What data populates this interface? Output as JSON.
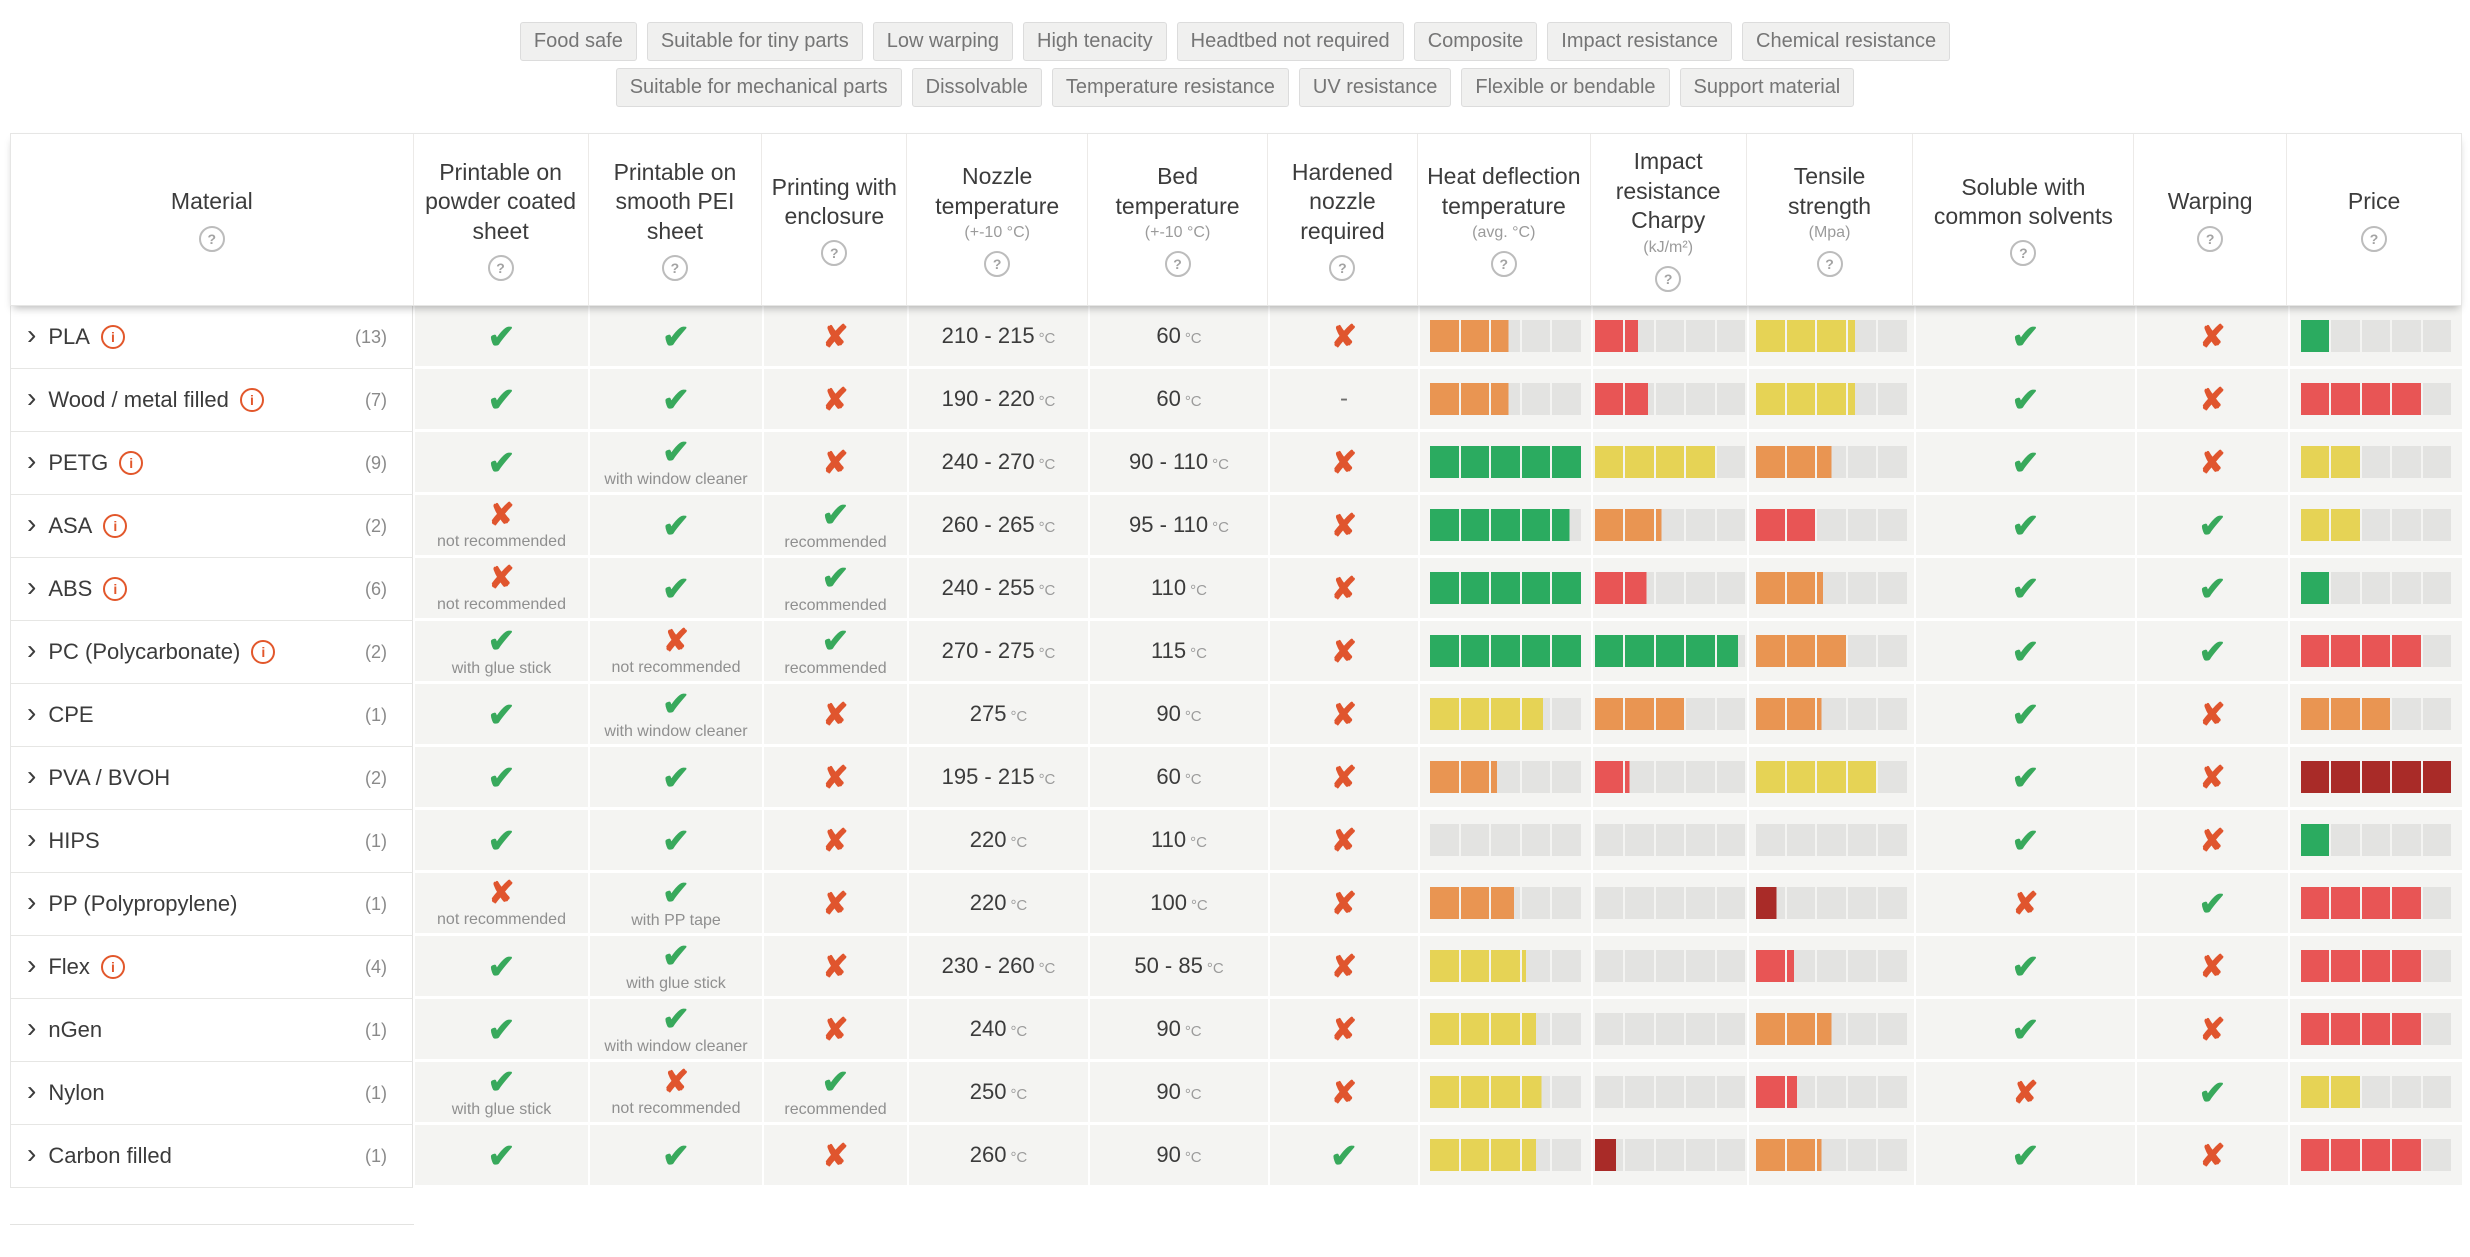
{
  "colors": {
    "check_green": "#38a95c",
    "cross_orange": "#e0552e",
    "info_orange": "#e2572b",
    "bar_green": "#2bab60",
    "bar_yellow": "#e6d355",
    "bar_orange": "#e99552",
    "bar_red": "#e85555",
    "bar_darkred": "#a92b28",
    "bar_empty": "#e3e3e1"
  },
  "icons": {
    "check": "✔",
    "cross": "✘",
    "dash": "-",
    "chevron": "›",
    "info": "i",
    "help": "?"
  },
  "filters": {
    "row1": [
      "Food safe",
      "Suitable for tiny parts",
      "Low warping",
      "High tenacity",
      "Headtbed not required",
      "Composite",
      "Impact resistance",
      "Chemical resistance"
    ],
    "row2": [
      "Suitable for mechanical parts",
      "Dissolvable",
      "Temperature resistance",
      "UV resistance",
      "Flexible or bendable",
      "Support material"
    ]
  },
  "table": {
    "columns": [
      {
        "id": "material",
        "label": "Material",
        "sub": "",
        "help": true,
        "type": "material",
        "field": "name"
      },
      {
        "id": "powder",
        "label": "Printable on powder coated sheet",
        "sub": "",
        "help": true,
        "type": "mark",
        "field": "powder"
      },
      {
        "id": "pei",
        "label": "Printable on smooth PEI sheet",
        "sub": "",
        "help": true,
        "type": "mark",
        "field": "pei"
      },
      {
        "id": "enclosure",
        "label": "Printing with enclosure",
        "sub": "",
        "help": true,
        "type": "mark",
        "field": "enclosure"
      },
      {
        "id": "nozzle",
        "label": "Nozzle temperature",
        "sub": "(+-10 °C)",
        "help": true,
        "type": "temp",
        "field": "nozzle"
      },
      {
        "id": "bed",
        "label": "Bed temperature",
        "sub": "(+-10 °C)",
        "help": true,
        "type": "temp",
        "field": "bed"
      },
      {
        "id": "hardened",
        "label": "Hardened nozzle required",
        "sub": "",
        "help": true,
        "type": "mark",
        "field": "hardened"
      },
      {
        "id": "heat",
        "label": "Heat deflection temperature",
        "sub": "(avg. °C)",
        "help": true,
        "type": "bar",
        "field": "heat"
      },
      {
        "id": "impact",
        "label": "Impact resistance Charpy",
        "sub": "(kJ/m²)",
        "help": true,
        "type": "bar",
        "field": "impact"
      },
      {
        "id": "tensile",
        "label": "Tensile strength",
        "sub": "(Mpa)",
        "help": true,
        "type": "bar",
        "field": "tensile"
      },
      {
        "id": "soluble",
        "label": "Soluble with common solvents",
        "sub": "",
        "help": true,
        "type": "mark",
        "field": "soluble"
      },
      {
        "id": "warping",
        "label": "Warping",
        "sub": "",
        "help": true,
        "type": "mark",
        "field": "warping"
      },
      {
        "id": "price",
        "label": "Price",
        "sub": "",
        "help": true,
        "type": "bar",
        "field": "price"
      }
    ],
    "rows": [
      {
        "name": "PLA",
        "info": true,
        "count": "(13)",
        "powder": {
          "mark": "check",
          "note": ""
        },
        "pei": {
          "mark": "check",
          "note": ""
        },
        "enclosure": {
          "mark": "cross",
          "note": ""
        },
        "nozzle": {
          "value": "210 - 215",
          "unit": "°C"
        },
        "bed": {
          "value": "60",
          "unit": "°C"
        },
        "hardened": {
          "mark": "cross",
          "note": ""
        },
        "heat": {
          "value": 2.6,
          "color": "orange"
        },
        "impact": {
          "value": 1.45,
          "color": "red"
        },
        "tensile": {
          "value": 3.25,
          "color": "yellow"
        },
        "soluble": {
          "mark": "check",
          "note": ""
        },
        "warping": {
          "mark": "cross",
          "note": ""
        },
        "price": {
          "value": 1,
          "color": "green"
        }
      },
      {
        "name": "Wood / metal filled",
        "info": true,
        "count": "(7)",
        "powder": {
          "mark": "check",
          "note": ""
        },
        "pei": {
          "mark": "check",
          "note": ""
        },
        "enclosure": {
          "mark": "cross",
          "note": ""
        },
        "nozzle": {
          "value": "190 - 220",
          "unit": "°C"
        },
        "bed": {
          "value": "60",
          "unit": "°C"
        },
        "hardened": {
          "mark": "dash",
          "note": ""
        },
        "heat": {
          "value": 2.6,
          "color": "orange"
        },
        "impact": {
          "value": 1.8,
          "color": "red"
        },
        "tensile": {
          "value": 3.25,
          "color": "yellow"
        },
        "soluble": {
          "mark": "check",
          "note": ""
        },
        "warping": {
          "mark": "cross",
          "note": ""
        },
        "price": {
          "value": 4,
          "color": "red"
        }
      },
      {
        "name": "PETG",
        "info": true,
        "count": "(9)",
        "powder": {
          "mark": "check",
          "note": ""
        },
        "pei": {
          "mark": "check",
          "note": "with window cleaner"
        },
        "enclosure": {
          "mark": "cross",
          "note": ""
        },
        "nozzle": {
          "value": "240 - 270",
          "unit": "°C"
        },
        "bed": {
          "value": "90 - 110",
          "unit": "°C"
        },
        "hardened": {
          "mark": "cross",
          "note": ""
        },
        "heat": {
          "value": 5,
          "color": "green"
        },
        "impact": {
          "value": 4,
          "color": "yellow"
        },
        "tensile": {
          "value": 2.5,
          "color": "orange"
        },
        "soluble": {
          "mark": "check",
          "note": ""
        },
        "warping": {
          "mark": "cross",
          "note": ""
        },
        "price": {
          "value": 2,
          "color": "yellow"
        }
      },
      {
        "name": "ASA",
        "info": true,
        "count": "(2)",
        "powder": {
          "mark": "cross",
          "note": "not recommended"
        },
        "pei": {
          "mark": "check",
          "note": ""
        },
        "enclosure": {
          "mark": "check",
          "note": "recommended"
        },
        "nozzle": {
          "value": "260 - 265",
          "unit": "°C"
        },
        "bed": {
          "value": "95 - 110",
          "unit": "°C"
        },
        "hardened": {
          "mark": "cross",
          "note": ""
        },
        "heat": {
          "value": 4.6,
          "color": "green"
        },
        "impact": {
          "value": 2.2,
          "color": "orange"
        },
        "tensile": {
          "value": 2,
          "color": "red"
        },
        "soluble": {
          "mark": "check",
          "note": ""
        },
        "warping": {
          "mark": "check",
          "note": ""
        },
        "price": {
          "value": 2,
          "color": "yellow"
        }
      },
      {
        "name": "ABS",
        "info": true,
        "count": "(6)",
        "powder": {
          "mark": "cross",
          "note": "not recommended"
        },
        "pei": {
          "mark": "check",
          "note": ""
        },
        "enclosure": {
          "mark": "check",
          "note": "recommended"
        },
        "nozzle": {
          "value": "240 - 255",
          "unit": "°C"
        },
        "bed": {
          "value": "110",
          "unit": "°C"
        },
        "hardened": {
          "mark": "cross",
          "note": ""
        },
        "heat": {
          "value": 5,
          "color": "green"
        },
        "impact": {
          "value": 1.75,
          "color": "red"
        },
        "tensile": {
          "value": 2.2,
          "color": "orange"
        },
        "soluble": {
          "mark": "check",
          "note": ""
        },
        "warping": {
          "mark": "check",
          "note": ""
        },
        "price": {
          "value": 1,
          "color": "green"
        }
      },
      {
        "name": "PC (Polycarbonate)",
        "info": true,
        "count": "(2)",
        "powder": {
          "mark": "check",
          "note": "with glue stick"
        },
        "pei": {
          "mark": "cross",
          "note": "not recommended"
        },
        "enclosure": {
          "mark": "check",
          "note": "recommended"
        },
        "nozzle": {
          "value": "270 - 275",
          "unit": "°C"
        },
        "bed": {
          "value": "115",
          "unit": "°C"
        },
        "hardened": {
          "mark": "cross",
          "note": ""
        },
        "heat": {
          "value": 5,
          "color": "green"
        },
        "impact": {
          "value": 4.75,
          "color": "green"
        },
        "tensile": {
          "value": 3,
          "color": "orange"
        },
        "soluble": {
          "mark": "check",
          "note": ""
        },
        "warping": {
          "mark": "check",
          "note": ""
        },
        "price": {
          "value": 4,
          "color": "red"
        }
      },
      {
        "name": "CPE",
        "info": false,
        "count": "(1)",
        "powder": {
          "mark": "check",
          "note": ""
        },
        "pei": {
          "mark": "check",
          "note": "with window cleaner"
        },
        "enclosure": {
          "mark": "cross",
          "note": ""
        },
        "nozzle": {
          "value": "275",
          "unit": "°C"
        },
        "bed": {
          "value": "90",
          "unit": "°C"
        },
        "hardened": {
          "mark": "cross",
          "note": ""
        },
        "heat": {
          "value": 3.75,
          "color": "yellow"
        },
        "impact": {
          "value": 3,
          "color": "orange"
        },
        "tensile": {
          "value": 2.15,
          "color": "orange"
        },
        "soluble": {
          "mark": "check",
          "note": ""
        },
        "warping": {
          "mark": "cross",
          "note": ""
        },
        "price": {
          "value": 3,
          "color": "orange"
        }
      },
      {
        "name": "PVA / BVOH",
        "info": false,
        "count": "(2)",
        "powder": {
          "mark": "check",
          "note": ""
        },
        "pei": {
          "mark": "check",
          "note": ""
        },
        "enclosure": {
          "mark": "cross",
          "note": ""
        },
        "nozzle": {
          "value": "195 - 215",
          "unit": "°C"
        },
        "bed": {
          "value": "60",
          "unit": "°C"
        },
        "hardened": {
          "mark": "cross",
          "note": ""
        },
        "heat": {
          "value": 2.2,
          "color": "orange"
        },
        "impact": {
          "value": 1.15,
          "color": "red"
        },
        "tensile": {
          "value": 4,
          "color": "yellow"
        },
        "soluble": {
          "mark": "check",
          "note": ""
        },
        "warping": {
          "mark": "cross",
          "note": ""
        },
        "price": {
          "value": 5,
          "color": "darkred"
        }
      },
      {
        "name": "HIPS",
        "info": false,
        "count": "(1)",
        "powder": {
          "mark": "check",
          "note": ""
        },
        "pei": {
          "mark": "check",
          "note": ""
        },
        "enclosure": {
          "mark": "cross",
          "note": ""
        },
        "nozzle": {
          "value": "220",
          "unit": "°C"
        },
        "bed": {
          "value": "110",
          "unit": "°C"
        },
        "hardened": {
          "mark": "cross",
          "note": ""
        },
        "heat": {
          "value": 0,
          "color": "green"
        },
        "impact": {
          "value": 0,
          "color": "green"
        },
        "tensile": {
          "value": 0,
          "color": "green"
        },
        "soluble": {
          "mark": "check",
          "note": ""
        },
        "warping": {
          "mark": "cross",
          "note": ""
        },
        "price": {
          "value": 1,
          "color": "green"
        }
      },
      {
        "name": "PP (Polypropylene)",
        "info": false,
        "count": "(1)",
        "powder": {
          "mark": "cross",
          "note": "not recommended"
        },
        "pei": {
          "mark": "check",
          "note": "with PP tape"
        },
        "enclosure": {
          "mark": "cross",
          "note": ""
        },
        "nozzle": {
          "value": "220",
          "unit": "°C"
        },
        "bed": {
          "value": "100",
          "unit": "°C"
        },
        "hardened": {
          "mark": "cross",
          "note": ""
        },
        "heat": {
          "value": 2.8,
          "color": "orange"
        },
        "impact": {
          "value": 0,
          "color": "green"
        },
        "tensile": {
          "value": 0.7,
          "color": "darkred"
        },
        "soluble": {
          "mark": "cross",
          "note": ""
        },
        "warping": {
          "mark": "check",
          "note": ""
        },
        "price": {
          "value": 4,
          "color": "red"
        }
      },
      {
        "name": "Flex",
        "info": true,
        "count": "(4)",
        "powder": {
          "mark": "check",
          "note": ""
        },
        "pei": {
          "mark": "check",
          "note": "with glue stick"
        },
        "enclosure": {
          "mark": "cross",
          "note": ""
        },
        "nozzle": {
          "value": "230 - 260",
          "unit": "°C"
        },
        "bed": {
          "value": "50 - 85",
          "unit": "°C"
        },
        "hardened": {
          "mark": "cross",
          "note": ""
        },
        "heat": {
          "value": 3.15,
          "color": "yellow"
        },
        "impact": {
          "value": 0,
          "color": "green"
        },
        "tensile": {
          "value": 1.25,
          "color": "red"
        },
        "soluble": {
          "mark": "check",
          "note": ""
        },
        "warping": {
          "mark": "cross",
          "note": ""
        },
        "price": {
          "value": 4,
          "color": "red"
        }
      },
      {
        "name": "nGen",
        "info": false,
        "count": "(1)",
        "powder": {
          "mark": "check",
          "note": ""
        },
        "pei": {
          "mark": "check",
          "note": "with window cleaner"
        },
        "enclosure": {
          "mark": "cross",
          "note": ""
        },
        "nozzle": {
          "value": "240",
          "unit": "°C"
        },
        "bed": {
          "value": "90",
          "unit": "°C"
        },
        "hardened": {
          "mark": "cross",
          "note": ""
        },
        "heat": {
          "value": 3.5,
          "color": "yellow"
        },
        "impact": {
          "value": 0,
          "color": "green"
        },
        "tensile": {
          "value": 2.5,
          "color": "orange"
        },
        "soluble": {
          "mark": "check",
          "note": ""
        },
        "warping": {
          "mark": "cross",
          "note": ""
        },
        "price": {
          "value": 4,
          "color": "red"
        }
      },
      {
        "name": "Nylon",
        "info": false,
        "count": "(1)",
        "powder": {
          "mark": "check",
          "note": "with glue stick"
        },
        "pei": {
          "mark": "cross",
          "note": "not recommended"
        },
        "enclosure": {
          "mark": "check",
          "note": "recommended"
        },
        "nozzle": {
          "value": "250",
          "unit": "°C"
        },
        "bed": {
          "value": "90",
          "unit": "°C"
        },
        "hardened": {
          "mark": "cross",
          "note": ""
        },
        "heat": {
          "value": 3.7,
          "color": "yellow"
        },
        "impact": {
          "value": 0,
          "color": "green"
        },
        "tensile": {
          "value": 1.35,
          "color": "red"
        },
        "soluble": {
          "mark": "cross",
          "note": ""
        },
        "warping": {
          "mark": "check",
          "note": ""
        },
        "price": {
          "value": 2,
          "color": "yellow"
        }
      },
      {
        "name": "Carbon filled",
        "info": false,
        "count": "(1)",
        "powder": {
          "mark": "check",
          "note": ""
        },
        "pei": {
          "mark": "check",
          "note": ""
        },
        "enclosure": {
          "mark": "cross",
          "note": ""
        },
        "nozzle": {
          "value": "260",
          "unit": "°C"
        },
        "bed": {
          "value": "90",
          "unit": "°C"
        },
        "hardened": {
          "mark": "check",
          "note": ""
        },
        "heat": {
          "value": 3.5,
          "color": "yellow"
        },
        "impact": {
          "value": 0.75,
          "color": "darkred"
        },
        "tensile": {
          "value": 2.15,
          "color": "orange"
        },
        "soluble": {
          "mark": "check",
          "note": ""
        },
        "warping": {
          "mark": "cross",
          "note": ""
        },
        "price": {
          "value": 4,
          "color": "red"
        }
      }
    ]
  }
}
